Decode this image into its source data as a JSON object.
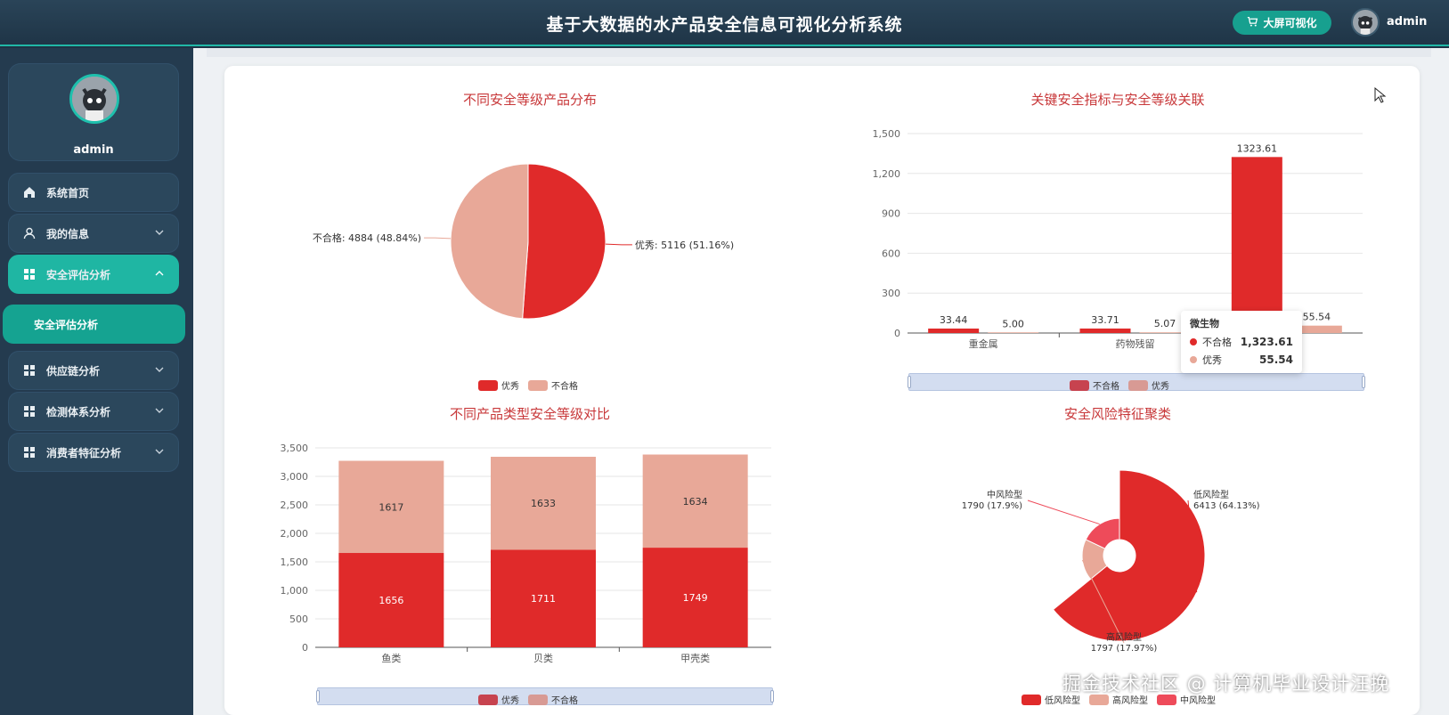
{
  "header": {
    "title": "基于大数据的水产品安全信息可视化分析系统",
    "bigscreen_label": "大屏可视化",
    "username": "admin"
  },
  "sidebar": {
    "profile_name": "admin",
    "items": [
      {
        "label": "系统首页",
        "icon": "home-icon"
      },
      {
        "label": "我的信息",
        "icon": "user-icon"
      },
      {
        "label": "安全评估分析",
        "icon": "grid-icon"
      },
      {
        "label": "供应链分析",
        "icon": "grid-icon"
      },
      {
        "label": "检测体系分析",
        "icon": "grid-icon"
      },
      {
        "label": "消费者特征分析",
        "icon": "grid-icon"
      }
    ],
    "submenu_label": "安全评估分析"
  },
  "colors": {
    "accent": "#1fb6a3",
    "red": "#e02a2a",
    "pink": "#e8a898",
    "rose": "#ee4b5a",
    "title": "#c8383a"
  },
  "chart_data": [
    {
      "type": "pie",
      "title": "不同安全等级产品分布",
      "slices": [
        {
          "name": "优秀",
          "value": 5116,
          "label": "优秀: 5116 (51.16%)"
        },
        {
          "name": "不合格",
          "value": 4884,
          "label": "不合格: 4884 (48.84%)"
        }
      ],
      "legend": [
        "优秀",
        "不合格"
      ],
      "legend_position": "bottom"
    },
    {
      "type": "bar",
      "title": "关键安全指标与安全等级关联",
      "categories": [
        "重金属",
        "药物残留",
        "微生物"
      ],
      "series": [
        {
          "name": "不合格",
          "values": [
            33.44,
            33.71,
            1323.61
          ]
        },
        {
          "name": "优秀",
          "values": [
            5.0,
            5.07,
            55.54
          ]
        }
      ],
      "data_labels": {
        "不合格": [
          "33.44",
          "33.71",
          "1323.61"
        ],
        "优秀": [
          "5.00",
          "5.07",
          "55.54"
        ]
      },
      "ylim": [
        0,
        1500
      ],
      "yticks": [
        "0",
        "300",
        "600",
        "900",
        "1,200",
        "1,500"
      ],
      "legend": [
        "不合格",
        "优秀"
      ],
      "tooltip": {
        "category": "微生物",
        "rows": [
          {
            "name": "不合格",
            "value": "1,323.61"
          },
          {
            "name": "优秀",
            "value": "55.54"
          }
        ]
      }
    },
    {
      "type": "bar",
      "stacked": true,
      "title": "不同产品类型安全等级对比",
      "categories": [
        "鱼类",
        "贝类",
        "甲壳类"
      ],
      "series": [
        {
          "name": "优秀",
          "values": [
            1656,
            1711,
            1749
          ]
        },
        {
          "name": "不合格",
          "values": [
            1617,
            1633,
            1634
          ]
        }
      ],
      "ylim": [
        0,
        3500
      ],
      "yticks": [
        "0",
        "500",
        "1,000",
        "1,500",
        "2,000",
        "2,500",
        "3,000",
        "3,500"
      ],
      "legend": [
        "优秀",
        "不合格"
      ]
    },
    {
      "type": "pie",
      "variant": "rose",
      "title": "安全风险特征聚类",
      "slices": [
        {
          "name": "低风险型",
          "value": 6413,
          "label_name": "低风险型",
          "label_value": "6413 (64.13%)"
        },
        {
          "name": "高风险型",
          "value": 1797,
          "label_name": "高风险型",
          "label_value": "1797 (17.97%)"
        },
        {
          "name": "中风险型",
          "value": 1790,
          "label_name": "中风险型",
          "label_value": "1790 (17.9%)"
        }
      ],
      "legend": [
        "低风险型",
        "高风险型",
        "中风险型"
      ]
    }
  ],
  "watermark": "掘金技术社区 @ 计算机毕业设计汪挽"
}
